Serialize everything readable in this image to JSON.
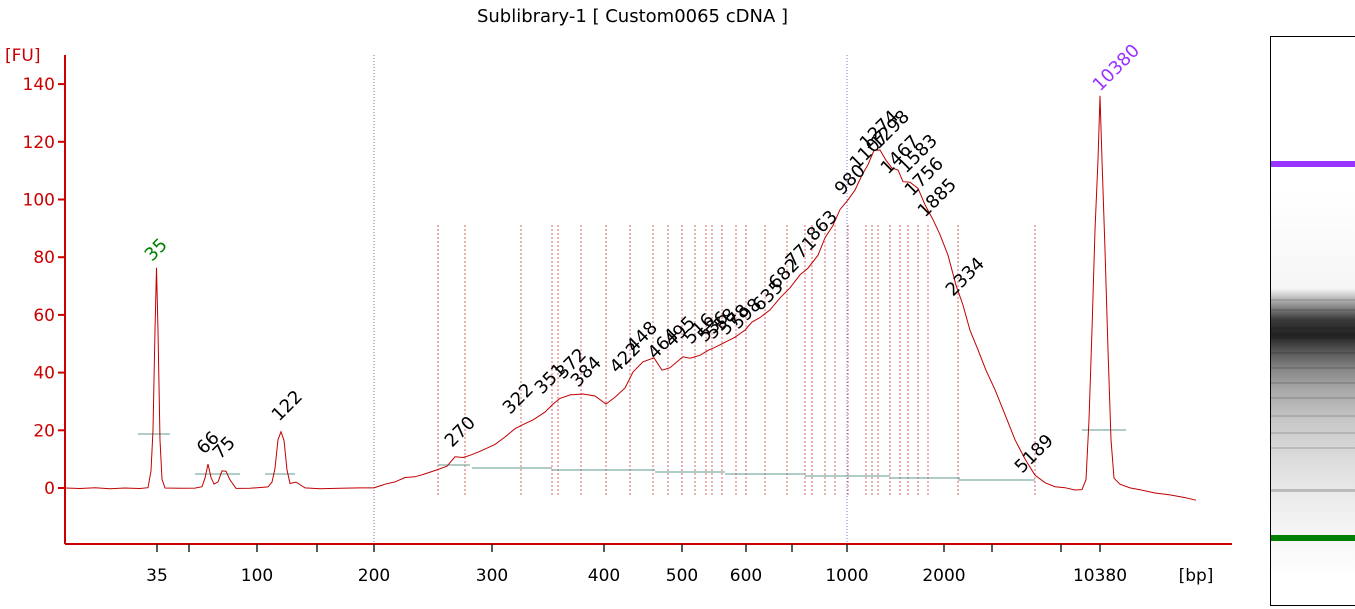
{
  "chart_data": {
    "type": "line",
    "title": "Sublibrary-1  [ Custom0065 cDNA ]",
    "ylabel": "[FU]",
    "xlabel": "[bp]",
    "y_ticks": [
      0,
      20,
      40,
      60,
      80,
      100,
      120,
      140
    ],
    "ylim": [
      -20,
      150
    ],
    "x_ticks": [
      "35",
      "100",
      "200",
      "300",
      "400",
      "500",
      "600",
      "1000",
      "2000",
      "10380"
    ],
    "markers": [
      {
        "label": "35",
        "value": 75,
        "color": "#008000",
        "kind": "lower marker"
      },
      {
        "label": "10380",
        "value": 135,
        "color": "#9933ff",
        "kind": "upper marker"
      }
    ],
    "peaks": [
      {
        "label": "66",
        "value": 8
      },
      {
        "label": "75",
        "value": 6
      },
      {
        "label": "122",
        "value": 19
      },
      {
        "label": "270",
        "value": 11
      },
      {
        "label": "322",
        "value": 22
      },
      {
        "label": "351",
        "value": 30
      },
      {
        "label": "372",
        "value": 33
      },
      {
        "label": "384",
        "value": 32
      },
      {
        "label": "422",
        "value": 38
      },
      {
        "label": "448",
        "value": 42
      },
      {
        "label": "464",
        "value": 40
      },
      {
        "label": "495",
        "value": 45
      },
      {
        "label": "516",
        "value": 45
      },
      {
        "label": "536",
        "value": 47
      },
      {
        "label": "558",
        "value": 50
      },
      {
        "label": "578",
        "value": 52
      },
      {
        "label": "598",
        "value": 54
      },
      {
        "label": "635",
        "value": 60
      },
      {
        "label": "682",
        "value": 66
      },
      {
        "label": "771",
        "value": 78
      },
      {
        "label": "863",
        "value": 90
      },
      {
        "label": "980",
        "value": 103
      },
      {
        "label": "1107",
        "value": 114
      },
      {
        "label": "1274",
        "value": 117
      },
      {
        "label": "1298",
        "value": 117
      },
      {
        "label": "1467",
        "value": 110
      },
      {
        "label": "1583",
        "value": 107
      },
      {
        "label": "1756",
        "value": 99
      },
      {
        "label": "1885",
        "value": 92
      },
      {
        "label": "2334",
        "value": 63
      },
      {
        "label": "5189",
        "value": 8
      }
    ],
    "grid": false,
    "colors": {
      "trace": "#c00000",
      "axis": "#cc0000",
      "baseline": "#5f9a8e",
      "text": "#000000"
    }
  }
}
